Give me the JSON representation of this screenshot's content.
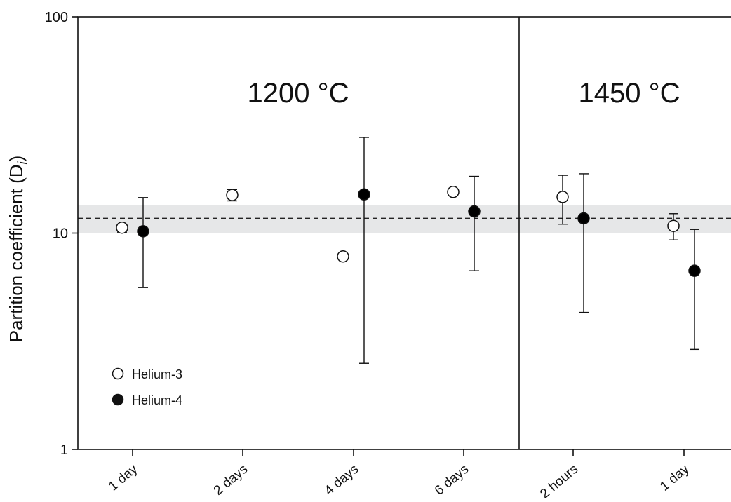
{
  "chart_data": {
    "type": "scatter",
    "ylabel": "Partition coefficient (D",
    "ylabel_sub": "i",
    "ylabel_close": ")",
    "yscale": "log",
    "ylim": [
      1,
      100
    ],
    "yticks": [
      {
        "value": 1,
        "label": "1"
      },
      {
        "value": 10,
        "label": "10"
      },
      {
        "value": 100,
        "label": "100"
      }
    ],
    "categories": [
      "1 day",
      "2 days",
      "4 days",
      "6 days",
      "2 hours",
      "1 day"
    ],
    "regions": [
      {
        "label": "1200 °C",
        "categories": [
          0,
          1,
          2,
          3
        ]
      },
      {
        "label": "1450 °C",
        "categories": [
          4,
          5
        ]
      }
    ],
    "reference": {
      "value": 11.7,
      "band": [
        10.0,
        13.5
      ],
      "style": "dashed",
      "band_color": "#e6e7e8"
    },
    "series": [
      {
        "name": "Helium-3",
        "marker": "open-circle",
        "color": "#000000",
        "points": [
          {
            "category": 0,
            "y": 10.6,
            "err_low": 10.1,
            "err_high": 11.0
          },
          {
            "category": 1,
            "y": 15.0,
            "err_low": 14.1,
            "err_high": 15.9
          },
          {
            "category": 2,
            "y": 7.8,
            "err_low": 7.8,
            "err_high": 7.8
          },
          {
            "category": 3,
            "y": 15.5,
            "err_low": 15.5,
            "err_high": 15.5
          },
          {
            "category": 4,
            "y": 14.7,
            "err_low": 11.0,
            "err_high": 18.5
          },
          {
            "category": 5,
            "y": 10.8,
            "err_low": 9.3,
            "err_high": 12.3
          }
        ]
      },
      {
        "name": "Helium-4",
        "marker": "filled-circle",
        "color": "#000000",
        "points": [
          {
            "category": 0,
            "y": 10.2,
            "err_low": 5.6,
            "err_high": 14.6
          },
          {
            "category": 1,
            "y": null,
            "err_low": null,
            "err_high": null
          },
          {
            "category": 2,
            "y": 15.1,
            "err_low": 2.5,
            "err_high": 27.7
          },
          {
            "category": 3,
            "y": 12.6,
            "err_low": 6.7,
            "err_high": 18.3
          },
          {
            "category": 4,
            "y": 11.7,
            "err_low": 4.3,
            "err_high": 18.8
          },
          {
            "category": 5,
            "y": 6.7,
            "err_low": 2.9,
            "err_high": 10.4
          }
        ]
      }
    ],
    "legend": {
      "position": "bottom-left",
      "entries": [
        "Helium-3",
        "Helium-4"
      ]
    },
    "grid": false
  }
}
